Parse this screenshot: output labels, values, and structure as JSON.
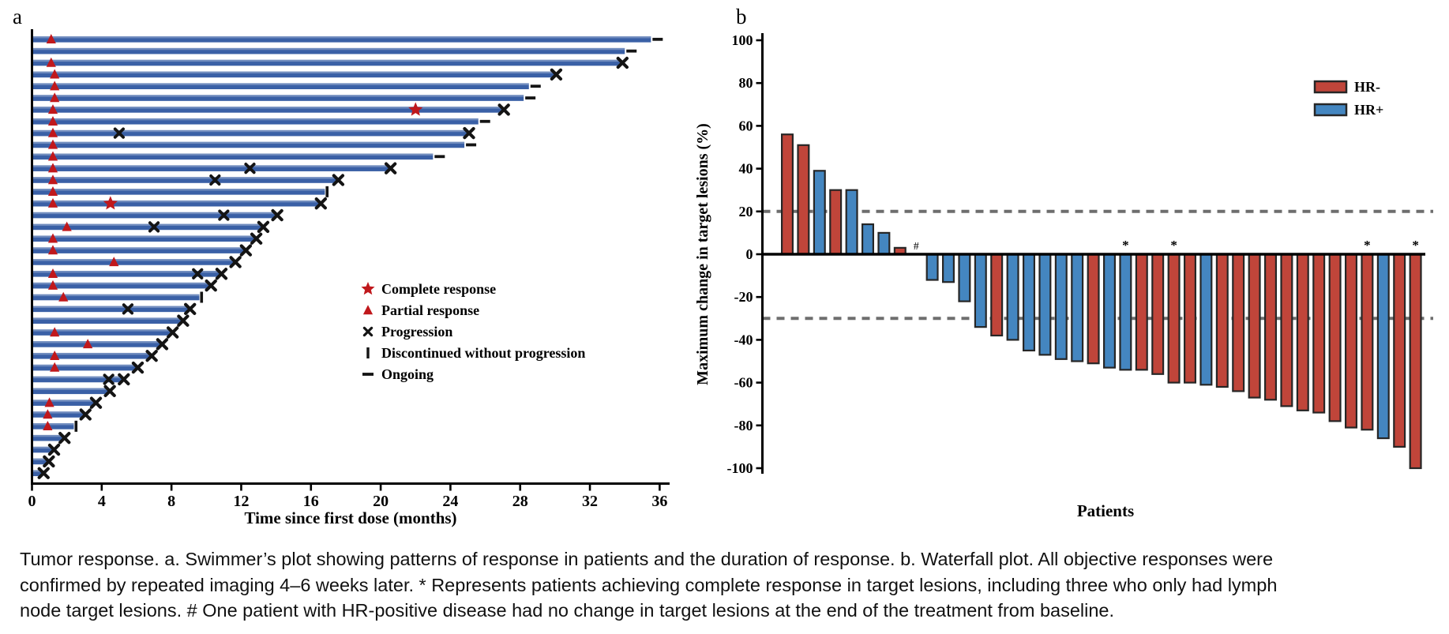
{
  "colors": {
    "swimmer_bar": "#3a60a6",
    "response_red": "#c0181c",
    "marker_black": "#141414",
    "hr_negative": "#c0453a",
    "hr_positive": "#4486c0",
    "reference_dash": "#6e6e6e"
  },
  "panel_a": {
    "label": "a",
    "x_axis": {
      "title": "Time since first dose (months)",
      "ticks": [
        0,
        4,
        8,
        12,
        16,
        20,
        24,
        28,
        32,
        36
      ],
      "xlim": [
        0,
        36.5
      ]
    },
    "legend": [
      {
        "marker": "star",
        "label": "Complete response"
      },
      {
        "marker": "triangle",
        "label": "Partial response"
      },
      {
        "marker": "x",
        "label": "Progression"
      },
      {
        "marker": "bar",
        "label": "Discontinued without progression"
      },
      {
        "marker": "dash",
        "label": "Ongoing"
      }
    ],
    "chart_data": {
      "type": "bar",
      "orientation": "horizontal-swimmer",
      "unit": "months",
      "xlabel": "Time since first dose (months)",
      "marker_meanings": {
        "star": "Complete response",
        "triangle": "Partial response",
        "x": "Progression",
        "bar": "Discontinued without progression",
        "dash": "Ongoing"
      },
      "patients": [
        {
          "duration": 35.5,
          "end": "dash",
          "triangles": [
            1.1
          ],
          "star": null,
          "x_marks": []
        },
        {
          "duration": 34.0,
          "end": "dash",
          "triangles": [],
          "star": null,
          "x_marks": []
        },
        {
          "duration": 33.8,
          "end": "x",
          "triangles": [
            1.1
          ],
          "star": null,
          "x_marks": []
        },
        {
          "duration": 30.0,
          "end": "x",
          "triangles": [
            1.3
          ],
          "star": null,
          "x_marks": []
        },
        {
          "duration": 28.5,
          "end": "dash",
          "triangles": [
            1.3
          ],
          "star": null,
          "x_marks": []
        },
        {
          "duration": 28.2,
          "end": "dash",
          "triangles": [
            1.3
          ],
          "star": null,
          "x_marks": []
        },
        {
          "duration": 27.0,
          "end": "x",
          "triangles": [
            1.2
          ],
          "star": 22.0,
          "x_marks": []
        },
        {
          "duration": 25.6,
          "end": "dash",
          "triangles": [
            1.2
          ],
          "star": null,
          "x_marks": []
        },
        {
          "duration": 25.0,
          "end": "x",
          "triangles": [
            1.2
          ],
          "star": null,
          "x_marks": [
            5.0
          ]
        },
        {
          "duration": 24.8,
          "end": "dash",
          "triangles": [
            1.2
          ],
          "star": null,
          "x_marks": []
        },
        {
          "duration": 23.0,
          "end": "dash",
          "triangles": [
            1.2
          ],
          "star": null,
          "x_marks": []
        },
        {
          "duration": 20.5,
          "end": "x",
          "triangles": [
            1.2
          ],
          "star": null,
          "x_marks": [
            12.5
          ]
        },
        {
          "duration": 17.5,
          "end": "x",
          "triangles": [
            1.2
          ],
          "star": null,
          "x_marks": [
            10.5
          ]
        },
        {
          "duration": 16.8,
          "end": "bar",
          "triangles": [
            1.2
          ],
          "star": null,
          "x_marks": []
        },
        {
          "duration": 16.5,
          "end": "x",
          "triangles": [
            1.2
          ],
          "star": 4.5,
          "x_marks": []
        },
        {
          "duration": 14.0,
          "end": "x",
          "triangles": [],
          "star": null,
          "x_marks": [
            11.0
          ]
        },
        {
          "duration": 13.2,
          "end": "x",
          "triangles": [
            2.0
          ],
          "star": null,
          "x_marks": [
            7.0
          ]
        },
        {
          "duration": 12.8,
          "end": "x",
          "triangles": [
            1.2
          ],
          "star": null,
          "x_marks": []
        },
        {
          "duration": 12.2,
          "end": "x",
          "triangles": [
            1.2
          ],
          "star": null,
          "x_marks": []
        },
        {
          "duration": 11.6,
          "end": "x",
          "triangles": [
            4.7
          ],
          "star": null,
          "x_marks": []
        },
        {
          "duration": 10.8,
          "end": "x",
          "triangles": [
            1.2
          ],
          "star": null,
          "x_marks": [
            9.5
          ]
        },
        {
          "duration": 10.2,
          "end": "x",
          "triangles": [
            1.2
          ],
          "star": null,
          "x_marks": []
        },
        {
          "duration": 9.6,
          "end": "bar",
          "triangles": [
            1.8
          ],
          "star": null,
          "x_marks": []
        },
        {
          "duration": 9.0,
          "end": "x",
          "triangles": [],
          "star": null,
          "x_marks": [
            5.5
          ]
        },
        {
          "duration": 8.6,
          "end": "x",
          "triangles": [],
          "star": null,
          "x_marks": []
        },
        {
          "duration": 8.0,
          "end": "x",
          "triangles": [
            1.3
          ],
          "star": null,
          "x_marks": []
        },
        {
          "duration": 7.4,
          "end": "x",
          "triangles": [
            3.2
          ],
          "star": null,
          "x_marks": []
        },
        {
          "duration": 6.8,
          "end": "x",
          "triangles": [
            1.3
          ],
          "star": null,
          "x_marks": []
        },
        {
          "duration": 6.0,
          "end": "x",
          "triangles": [
            1.3
          ],
          "star": null,
          "x_marks": []
        },
        {
          "duration": 5.2,
          "end": "x",
          "triangles": [],
          "star": null,
          "x_marks": [
            4.4
          ]
        },
        {
          "duration": 4.4,
          "end": "x",
          "triangles": [],
          "star": null,
          "x_marks": []
        },
        {
          "duration": 3.6,
          "end": "x",
          "triangles": [
            1.0
          ],
          "star": null,
          "x_marks": []
        },
        {
          "duration": 3.0,
          "end": "x",
          "triangles": [
            0.9
          ],
          "star": null,
          "x_marks": []
        },
        {
          "duration": 2.4,
          "end": "bar",
          "triangles": [
            0.9
          ],
          "star": null,
          "x_marks": []
        },
        {
          "duration": 1.8,
          "end": "x",
          "triangles": [],
          "star": null,
          "x_marks": []
        },
        {
          "duration": 1.2,
          "end": "x",
          "triangles": [],
          "star": null,
          "x_marks": []
        },
        {
          "duration": 0.9,
          "end": "x",
          "triangles": [],
          "star": null,
          "x_marks": []
        },
        {
          "duration": 0.6,
          "end": "x",
          "triangles": [],
          "star": null,
          "x_marks": []
        }
      ]
    }
  },
  "panel_b": {
    "label": "b",
    "y_axis": {
      "title": "Maximum change in target lesions (%)",
      "ticks": [
        100,
        80,
        60,
        40,
        20,
        0,
        -20,
        -40,
        -60,
        -80,
        -100
      ],
      "ylim": [
        -100,
        100
      ]
    },
    "x_axis": {
      "title": "Patients"
    },
    "legend": [
      {
        "group": "HR-",
        "color_key": "hr_negative"
      },
      {
        "group": "HR+",
        "color_key": "hr_positive"
      }
    ],
    "reference_lines": [
      20,
      -30
    ],
    "chart_data": {
      "type": "bar",
      "title": "",
      "xlabel": "Patients",
      "ylabel": "Maximum change in target lesions (%)",
      "ylim": [
        -100,
        100
      ],
      "annotations": {
        "*": "complete response in target lesions",
        "#": "no change in target lesions from baseline"
      },
      "patients": [
        {
          "value": 56,
          "hr": "HR-"
        },
        {
          "value": 51,
          "hr": "HR-"
        },
        {
          "value": 39,
          "hr": "HR+"
        },
        {
          "value": 30,
          "hr": "HR-"
        },
        {
          "value": 30,
          "hr": "HR+"
        },
        {
          "value": 14,
          "hr": "HR+"
        },
        {
          "value": 10,
          "hr": "HR+"
        },
        {
          "value": 3,
          "hr": "HR-"
        },
        {
          "value": 0,
          "hr": "HR+",
          "mark": "#"
        },
        {
          "value": -12,
          "hr": "HR+"
        },
        {
          "value": -13,
          "hr": "HR+"
        },
        {
          "value": -22,
          "hr": "HR+"
        },
        {
          "value": -34,
          "hr": "HR+"
        },
        {
          "value": -38,
          "hr": "HR-"
        },
        {
          "value": -40,
          "hr": "HR+"
        },
        {
          "value": -45,
          "hr": "HR+"
        },
        {
          "value": -47,
          "hr": "HR+"
        },
        {
          "value": -49,
          "hr": "HR+"
        },
        {
          "value": -50,
          "hr": "HR+"
        },
        {
          "value": -51,
          "hr": "HR-"
        },
        {
          "value": -53,
          "hr": "HR+"
        },
        {
          "value": -54,
          "hr": "HR+",
          "mark": "*"
        },
        {
          "value": -54,
          "hr": "HR-"
        },
        {
          "value": -56,
          "hr": "HR-"
        },
        {
          "value": -60,
          "hr": "HR-",
          "mark": "*"
        },
        {
          "value": -60,
          "hr": "HR-"
        },
        {
          "value": -61,
          "hr": "HR+"
        },
        {
          "value": -62,
          "hr": "HR-"
        },
        {
          "value": -64,
          "hr": "HR-"
        },
        {
          "value": -67,
          "hr": "HR-"
        },
        {
          "value": -68,
          "hr": "HR-"
        },
        {
          "value": -71,
          "hr": "HR-"
        },
        {
          "value": -73,
          "hr": "HR-"
        },
        {
          "value": -74,
          "hr": "HR-"
        },
        {
          "value": -78,
          "hr": "HR-"
        },
        {
          "value": -81,
          "hr": "HR-"
        },
        {
          "value": -82,
          "hr": "HR-",
          "mark": "*"
        },
        {
          "value": -86,
          "hr": "HR+"
        },
        {
          "value": -90,
          "hr": "HR-"
        },
        {
          "value": -100,
          "hr": "HR-",
          "mark": "*"
        }
      ]
    }
  },
  "caption": {
    "lines": [
      "Tumor response. a. Swimmer’s plot showing patterns of response in patients and the duration of response. b. Waterfall plot. All objective responses were",
      "confirmed by repeated imaging 4–6 weeks later. * Represents patients achieving complete response in target lesions, including three who only had lymph",
      "node target lesions. # One patient with HR-positive disease had no change in target lesions at the end of the treatment from baseline."
    ]
  }
}
